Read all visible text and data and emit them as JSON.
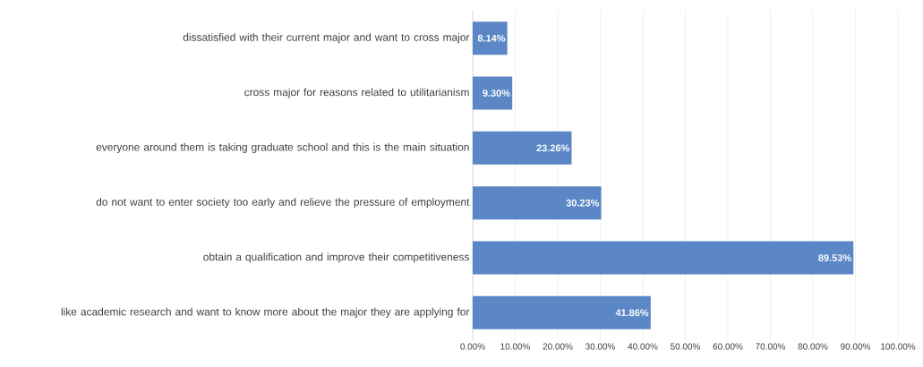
{
  "chart_data": {
    "type": "bar",
    "orientation": "horizontal",
    "categories": [
      "dissatisfied with their current major and want to cross major",
      "cross major for reasons related to utilitarianism",
      "everyone around them is taking graduate school and this is the main situation",
      "do not want to enter society too early and relieve the pressure of employment",
      "obtain a qualification and improve their competitiveness",
      "like academic research and want to know more about the major they are applying for"
    ],
    "values": [
      8.14,
      9.3,
      23.26,
      30.23,
      89.53,
      41.86
    ],
    "value_labels": [
      "8.14%",
      "9.30%",
      "23.26%",
      "30.23%",
      "89.53%",
      "41.86%"
    ],
    "color": "#5b87c6",
    "xlim": [
      0,
      100
    ],
    "xticks": [
      {
        "value": 0,
        "label": "0.00%"
      },
      {
        "value": 10,
        "label": "10.00%"
      },
      {
        "value": 20,
        "label": "20.00%"
      },
      {
        "value": 30,
        "label": "30.00%"
      },
      {
        "value": 40,
        "label": "40.00%"
      },
      {
        "value": 50,
        "label": "50.00%"
      },
      {
        "value": 60,
        "label": "60.00%"
      },
      {
        "value": 70,
        "label": "70.00%"
      },
      {
        "value": 80,
        "label": "80.00%"
      },
      {
        "value": 90,
        "label": "90.00%"
      },
      {
        "value": 100,
        "label": "100.00%"
      }
    ],
    "grid": "x"
  }
}
